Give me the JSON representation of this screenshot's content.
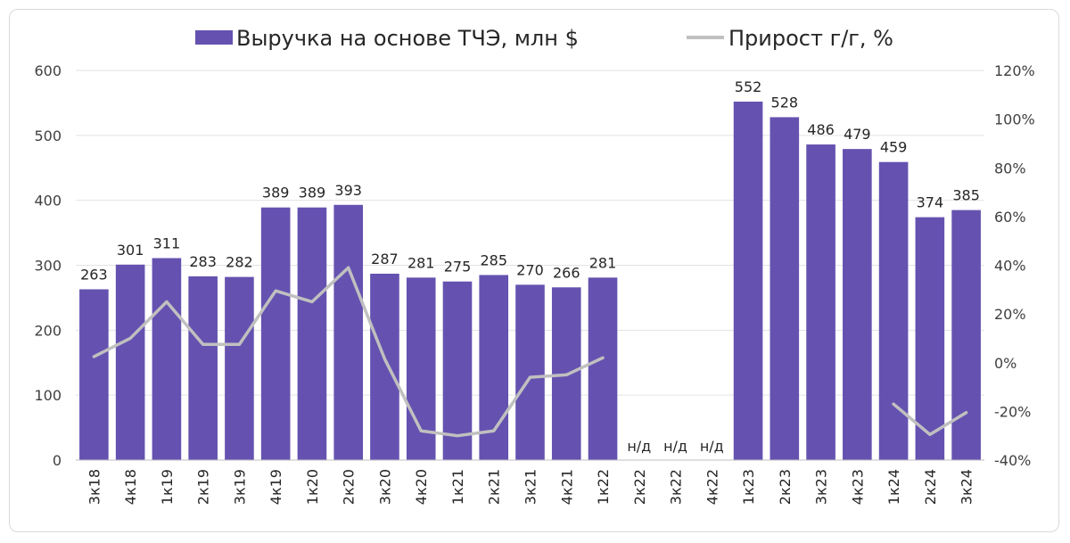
{
  "chart_data": {
    "type": "bar",
    "categories": [
      "3к18",
      "4к18",
      "1к19",
      "2к19",
      "3к19",
      "4к19",
      "1к20",
      "2к20",
      "3к20",
      "4к20",
      "1к21",
      "2к21",
      "3к21",
      "4к21",
      "1к22",
      "2к22",
      "3к22",
      "4к22",
      "1к23",
      "2к23",
      "3к23",
      "4к23",
      "1к24",
      "2к24",
      "3к24"
    ],
    "series": [
      {
        "name": "Выручка на основе ТЧЭ, млн $",
        "type": "bar",
        "axis": "left",
        "color": "#6552b0",
        "values": [
          263,
          301,
          311,
          283,
          282,
          389,
          389,
          393,
          287,
          281,
          275,
          285,
          270,
          266,
          281,
          null,
          null,
          null,
          552,
          528,
          486,
          479,
          459,
          374,
          385
        ],
        "labels": [
          "263",
          "301",
          "311",
          "283",
          "282",
          "389",
          "389",
          "393",
          "287",
          "281",
          "275",
          "285",
          "270",
          "266",
          "281",
          "н/д",
          "н/д",
          "н/д",
          "552",
          "528",
          "486",
          "479",
          "459",
          "374",
          "385"
        ]
      },
      {
        "name": "Прирост г/г, %",
        "type": "line",
        "axis": "right",
        "color": "#c0c0c0",
        "values": [
          2.5,
          10,
          25,
          7.5,
          7.5,
          29.5,
          25,
          39,
          1.5,
          -28,
          -30,
          -28,
          -6,
          -5,
          2,
          null,
          null,
          null,
          null,
          null,
          null,
          null,
          -17,
          -29.5,
          -20.5
        ]
      }
    ],
    "y_left": {
      "ylim": [
        0,
        600
      ],
      "ticks": [
        "0",
        "100",
        "200",
        "300",
        "400",
        "500",
        "600"
      ]
    },
    "y_right": {
      "ylim": [
        -40,
        120
      ],
      "ticks": [
        "-40%",
        "-20%",
        "0%",
        "20%",
        "40%",
        "60%",
        "80%",
        "100%",
        "120%"
      ]
    },
    "legend_position": "top",
    "grid": true
  }
}
